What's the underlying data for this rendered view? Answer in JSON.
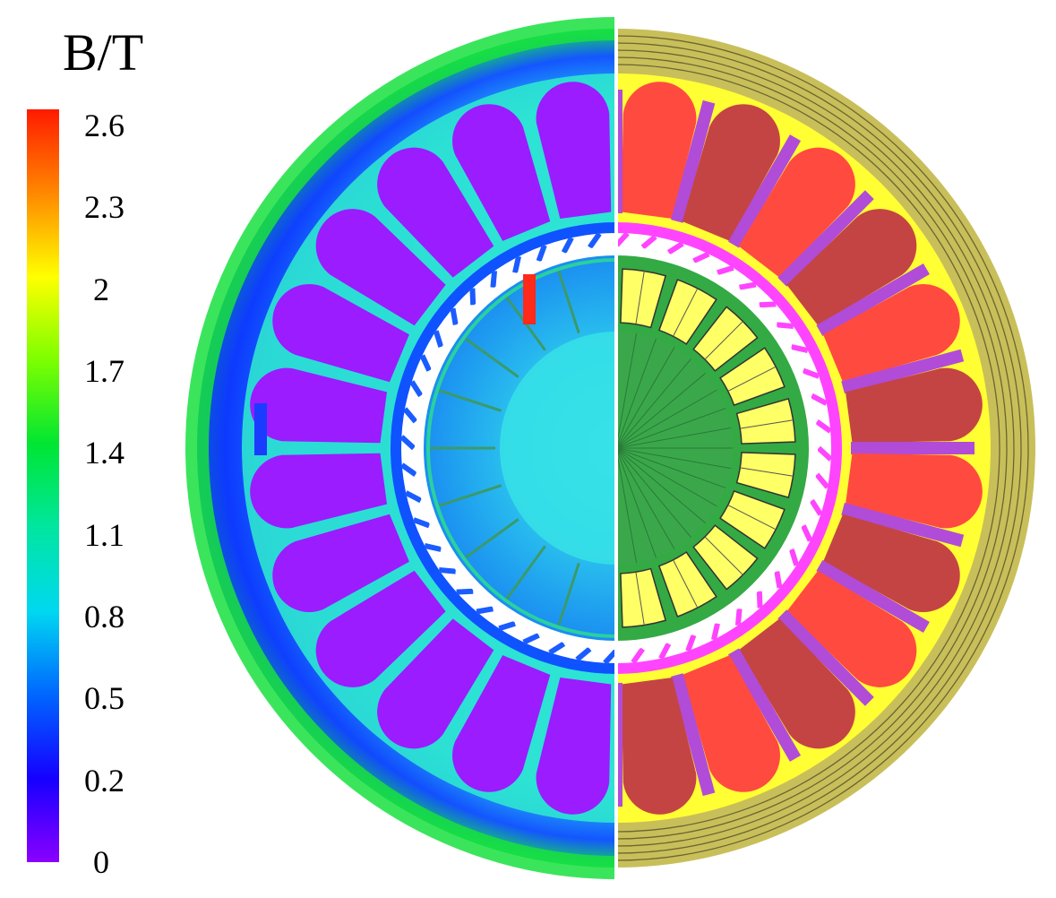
{
  "colorbar": {
    "title": "B/T",
    "ticks": [
      "2.6",
      "2.3",
      "2",
      "1.7",
      "1.4",
      "1.1",
      "0.8",
      "0.5",
      "0.2",
      "0"
    ],
    "colors": [
      "#ff1a00",
      "#ff8800",
      "#ffff00",
      "#7cff00",
      "#00e632",
      "#00e6a0",
      "#00d8f0",
      "#0066ff",
      "#1500ff",
      "#8a00ff"
    ]
  },
  "left_half": {
    "description_colors": {
      "outer_yoke_edge": "#18d84a",
      "yoke": "#1aa7e6",
      "stator_coils": "#9a1cff",
      "stator_teeth": "#2ee6d0",
      "rotor": "#22b8ee",
      "rotor_center": "#30e0e8"
    }
  },
  "right_half": {
    "description_colors": {
      "housing": "#c8bf5a",
      "coil_a": "#ff4040",
      "coil_b": "#c84040",
      "teeth": "#b04cd8",
      "slot_fill": "#ffff33",
      "rotor_core": "#33aa44",
      "magnets": "#ffff66",
      "gap_ring": "#ff44ff"
    }
  }
}
